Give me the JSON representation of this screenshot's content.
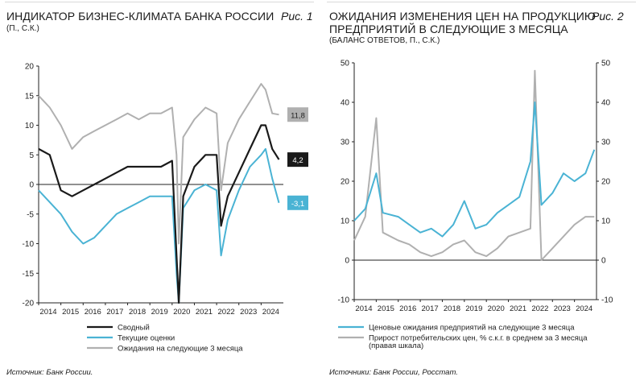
{
  "panels": [
    {
      "title": "ИНДИКАТОР БИЗНЕС-КЛИМАТА БАНКА РОССИИ",
      "subtitle": "(П., С.К.)",
      "fig": "Рис. 1",
      "source": "Источник: Банк России."
    },
    {
      "title_line1": "ОЖИДАНИЯ ИЗМЕНЕНИЯ ЦЕН НА ПРОДУКЦИЮ",
      "title_line2": "ПРЕДПРИЯТИЙ В СЛЕДУЮЩИЕ 3 МЕСЯЦА",
      "subtitle": "(БАЛАНС ОТВЕТОВ, П., С.К.)",
      "fig": "Рис. 2",
      "source": "Источники: Банк России, Росстат."
    }
  ],
  "colors": {
    "black": "#1a1a1a",
    "blue": "#4ab3d4",
    "gray": "#b0b0b0"
  },
  "chart_data": [
    {
      "type": "line",
      "x": [
        "2014",
        "2014.5",
        "2015",
        "2015.5",
        "2016",
        "2016.5",
        "2017",
        "2017.5",
        "2018",
        "2018.5",
        "2019",
        "2019.5",
        "2020",
        "2020.2",
        "2020.3",
        "2020.5",
        "2021",
        "2021.5",
        "2022",
        "2022.2",
        "2022.5",
        "2023",
        "2023.5",
        "2024",
        "2024.2",
        "2024.5",
        "2024.8"
      ],
      "xticks": [
        "2014",
        "2015",
        "2016",
        "2017",
        "2018",
        "2019",
        "2020",
        "2021",
        "2022",
        "2023",
        "2024"
      ],
      "ylim": [
        -20,
        20
      ],
      "yticks": [
        -20,
        -15,
        -10,
        -5,
        0,
        5,
        10,
        15,
        20
      ],
      "grid": false,
      "legend_position": "bottom",
      "series": [
        {
          "name": "Сводный",
          "color": "black",
          "values": [
            6,
            5,
            -1,
            -2,
            -1,
            0,
            1,
            2,
            3,
            3,
            3,
            3,
            4,
            -12,
            -20,
            -2,
            3,
            5,
            5,
            -7,
            -2,
            2,
            6,
            10,
            10,
            6,
            4.2
          ]
        },
        {
          "name": "Текущие оценки",
          "color": "blue",
          "values": [
            -1,
            -3,
            -5,
            -8,
            -10,
            -9,
            -7,
            -5,
            -4,
            -3,
            -2,
            -2,
            -2,
            -15,
            -20,
            -4,
            -1,
            0,
            -1,
            -12,
            -6,
            -1,
            3,
            5,
            6,
            1,
            -3.1
          ]
        },
        {
          "name": "Ожидания на следующие 3 месяца",
          "color": "gray",
          "values": [
            15,
            13,
            10,
            6,
            8,
            9,
            10,
            11,
            12,
            11,
            12,
            12,
            13,
            5,
            -10,
            8,
            11,
            13,
            12,
            -1,
            7,
            11,
            14,
            17,
            16,
            12,
            11.8
          ]
        }
      ],
      "end_labels": [
        "11,8",
        "4,2",
        "-3,1"
      ]
    },
    {
      "type": "line",
      "x": [
        "2014",
        "2014.5",
        "2015",
        "2015.3",
        "2016",
        "2016.5",
        "2017",
        "2017.5",
        "2018",
        "2018.5",
        "2019",
        "2019.5",
        "2020",
        "2020.5",
        "2021",
        "2021.5",
        "2022",
        "2022.2",
        "2022.5",
        "2023",
        "2023.5",
        "2024",
        "2024.5",
        "2024.9"
      ],
      "xticks": [
        "2014",
        "2015",
        "2016",
        "2017",
        "2018",
        "2019",
        "2020",
        "2021",
        "2022",
        "2023",
        "2024"
      ],
      "ylim": [
        -10,
        50
      ],
      "yticks": [
        -10,
        0,
        10,
        20,
        30,
        40,
        50
      ],
      "y2lim": [
        -10,
        50
      ],
      "y2ticks": [
        -10,
        0,
        10,
        20,
        30,
        40,
        50
      ],
      "grid": false,
      "legend_position": "bottom",
      "series": [
        {
          "name": "Ценовые ожидания предприятий на следующие 3 месяца",
          "color": "blue",
          "axis": "left",
          "values": [
            10,
            13,
            22,
            12,
            11,
            9,
            7,
            8,
            6,
            9,
            15,
            8,
            9,
            12,
            14,
            16,
            25,
            40,
            14,
            17,
            22,
            20,
            22,
            28
          ]
        },
        {
          "name": "Прирост потребительских цен, % с.к.г. в среднем за 3 месяца (правая шкала)",
          "color": "gray",
          "axis": "right",
          "values": [
            5,
            11,
            36,
            7,
            5,
            4,
            2,
            1,
            2,
            4,
            5,
            2,
            1,
            3,
            6,
            7,
            8,
            48,
            0,
            3,
            6,
            9,
            11,
            11
          ]
        }
      ]
    }
  ]
}
